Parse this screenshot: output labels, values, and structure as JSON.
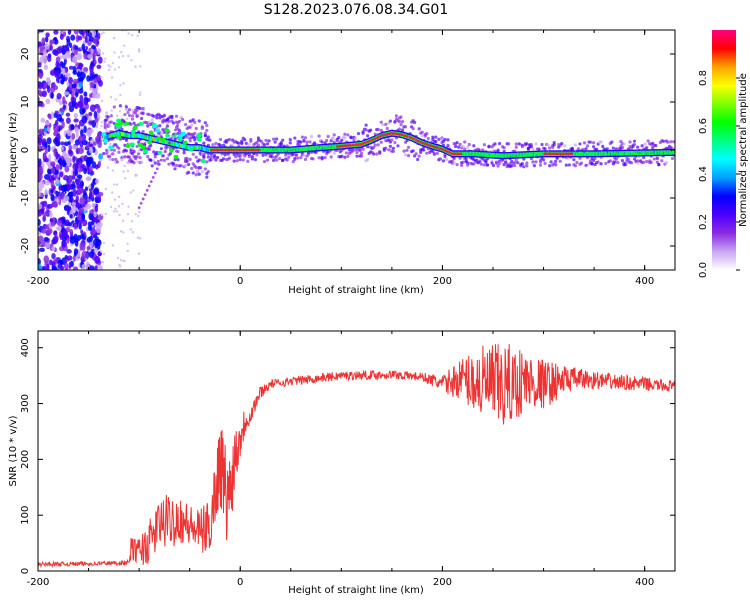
{
  "title": "S128.2023.076.08.34.G01",
  "chart_data": [
    {
      "type": "heatmap",
      "title": "S128.2023.076.08.34.G01",
      "xlabel": "Height of straight line (km)",
      "ylabel": "Frequency (Hz)",
      "xlim": [
        -200,
        430
      ],
      "ylim": [
        -25,
        25
      ],
      "xticks": [
        -200,
        0,
        200,
        400
      ],
      "yticks": [
        -20,
        -10,
        0,
        10,
        20
      ],
      "colorbar": {
        "label": "Normalized spectral amplitude",
        "range": [
          0,
          1
        ],
        "ticks": [
          "0.0",
          "0.2",
          "0.4",
          "0.6",
          "0.8"
        ],
        "colors": [
          "#ffffff",
          "#c9a6f2",
          "#8a2be2",
          "#4b00ff",
          "#0000ff",
          "#00a0ff",
          "#00ffff",
          "#00ff80",
          "#00ff00",
          "#80ff00",
          "#ffff00",
          "#ffa000",
          "#ff0000",
          "#ff0080"
        ]
      },
      "noise_region_x": [
        -200,
        -138
      ],
      "signal_track": {
        "x": [
          -135,
          -120,
          -110,
          -100,
          -90,
          -80,
          -70,
          -60,
          -50,
          -40,
          -30,
          0,
          50,
          80,
          100,
          120,
          130,
          140,
          150,
          160,
          170,
          180,
          190,
          200,
          210,
          230,
          260,
          300,
          350,
          400,
          430
        ],
        "freq": [
          2.5,
          3.5,
          3,
          3,
          2.5,
          2,
          1.5,
          1,
          0.5,
          0.5,
          0,
          0,
          0,
          0.5,
          0.8,
          1.2,
          2,
          3,
          3.5,
          3.2,
          2.5,
          1.5,
          0.8,
          0.2,
          -0.8,
          -0.8,
          -1.2,
          -0.8,
          -0.8,
          -0.6,
          -0.5
        ]
      }
    },
    {
      "type": "line",
      "xlabel": "Height of straight line (km)",
      "ylabel": "SNR (10 * v/v)",
      "xlim": [
        -200,
        430
      ],
      "ylim": [
        0,
        430
      ],
      "xticks": [
        -200,
        0,
        200,
        400
      ],
      "yticks": [
        0,
        100,
        200,
        300,
        400
      ],
      "color": "#ee3333",
      "series": [
        {
          "name": "SNR",
          "x": [
            -200,
            -150,
            -110,
            -108,
            -100,
            -90,
            -80,
            -70,
            -60,
            -50,
            -40,
            -30,
            -20,
            -12,
            -5,
            0,
            5,
            10,
            20,
            30,
            50,
            100,
            150,
            180,
            200,
            220,
            240,
            260,
            280,
            300,
            330,
            360,
            400,
            430
          ],
          "values": [
            12,
            13,
            15,
            40,
            35,
            50,
            85,
            90,
            95,
            80,
            70,
            80,
            200,
            120,
            210,
            240,
            270,
            280,
            320,
            335,
            340,
            350,
            352,
            348,
            335,
            345,
            335,
            330,
            340,
            335,
            345,
            340,
            335,
            330
          ],
          "amplitude": [
            4,
            4,
            4,
            20,
            25,
            40,
            45,
            50,
            45,
            40,
            40,
            50,
            80,
            90,
            60,
            40,
            25,
            20,
            12,
            8,
            8,
            8,
            8,
            8,
            15,
            40,
            70,
            80,
            60,
            45,
            20,
            15,
            12,
            10
          ]
        }
      ]
    }
  ]
}
